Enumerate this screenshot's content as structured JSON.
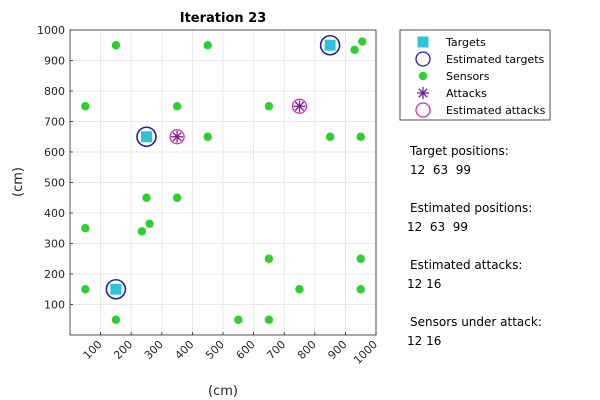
{
  "chart_data": {
    "type": "scatter",
    "title": "Iteration 23",
    "xlabel": "(cm)",
    "ylabel": "(cm)",
    "xlim": [
      0,
      1000
    ],
    "ylim": [
      0,
      1000
    ],
    "xticks": [
      100,
      200,
      300,
      400,
      500,
      600,
      700,
      800,
      900,
      1000
    ],
    "yticks": [
      100,
      200,
      300,
      400,
      500,
      600,
      700,
      800,
      900,
      1000
    ],
    "grid": true,
    "legend_position": "outside-top-right",
    "series": [
      {
        "name": "Targets",
        "marker": "filled-square",
        "color": "#2ec4d6",
        "points": [
          [
            250,
            650
          ],
          [
            850,
            950
          ],
          [
            150,
            150
          ]
        ]
      },
      {
        "name": "Estimated targets",
        "marker": "open-circle",
        "color": "#1f1fa8",
        "points": [
          [
            250,
            650
          ],
          [
            850,
            950
          ],
          [
            150,
            150
          ]
        ]
      },
      {
        "name": "Sensors",
        "marker": "filled-circle",
        "color": "#2fcf2f",
        "points": [
          [
            150,
            950
          ],
          [
            450,
            950
          ],
          [
            930,
            935
          ],
          [
            955,
            962
          ],
          [
            50,
            750
          ],
          [
            350,
            750
          ],
          [
            650,
            750
          ],
          [
            450,
            650
          ],
          [
            850,
            650
          ],
          [
            950,
            650
          ],
          [
            250,
            450
          ],
          [
            350,
            450
          ],
          [
            50,
            350
          ],
          [
            235,
            340
          ],
          [
            260,
            365
          ],
          [
            650,
            250
          ],
          [
            950,
            250
          ],
          [
            50,
            150
          ],
          [
            750,
            150
          ],
          [
            950,
            150
          ],
          [
            150,
            50
          ],
          [
            550,
            50
          ],
          [
            650,
            50
          ]
        ]
      },
      {
        "name": "Attacks",
        "marker": "asterisk",
        "color": "#7a1f8f",
        "points": [
          [
            350,
            650
          ],
          [
            750,
            750
          ]
        ]
      },
      {
        "name": "Estimated attacks",
        "marker": "open-circle",
        "color": "#d62fae",
        "points": [
          [
            350,
            650
          ],
          [
            750,
            750
          ]
        ]
      }
    ]
  },
  "info": {
    "target_positions_label": "Target positions:",
    "target_positions_value": "12  63  99",
    "estimated_positions_label": "Estimated positions:",
    "estimated_positions_value": "12  63  99",
    "estimated_attacks_label": "Estimated attacks:",
    "estimated_attacks_value": "12 16",
    "sensors_under_attack_label": "Sensors under attack:",
    "sensors_under_attack_value": "12 16"
  }
}
